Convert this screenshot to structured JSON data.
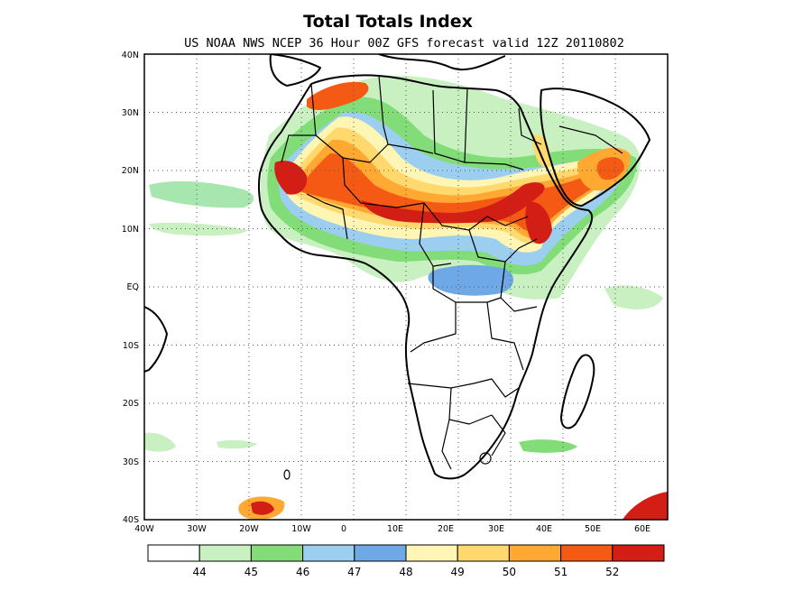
{
  "title": "Total Totals Index",
  "subtitle": "US NOAA NWS NCEP 36 Hour 00Z GFS forecast valid 12Z 20110802",
  "lat_labels": [
    "40N",
    "30N",
    "20N",
    "10N",
    "EQ",
    "10S",
    "20S",
    "30S",
    "40S"
  ],
  "lon_labels": [
    "40W",
    "30W",
    "20W",
    "10W",
    "0",
    "10E",
    "20E",
    "30E",
    "40E",
    "50E",
    "60E"
  ],
  "legend": {
    "labels": [
      "44",
      "45",
      "46",
      "47",
      "48",
      "49",
      "50",
      "51",
      "52"
    ],
    "colors": [
      "#ffffff",
      "#c8f0c0",
      "#82dc78",
      "#9ccef0",
      "#6ea8e6",
      "#fff5b4",
      "#ffd96e",
      "#ffa832",
      "#f55a14",
      "#d21e14"
    ]
  }
}
